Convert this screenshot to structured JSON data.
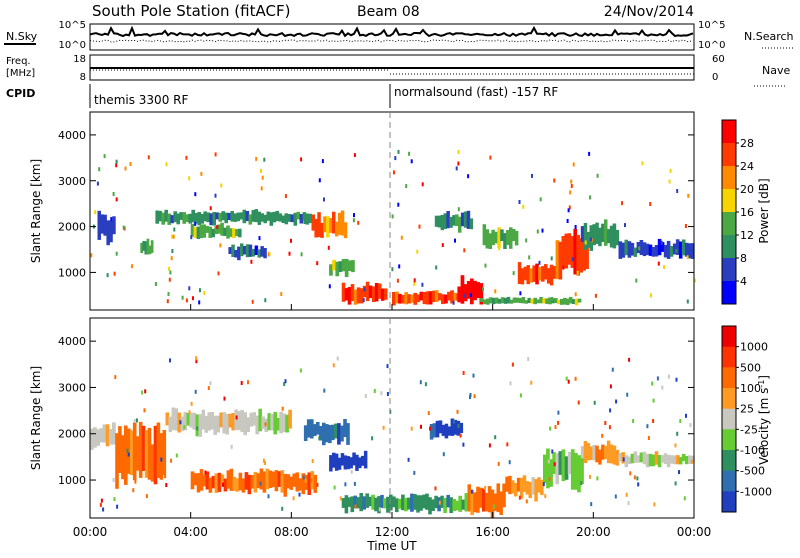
{
  "header": {
    "station_title": "South Pole Station (fitACF)",
    "beam": "Beam 08",
    "date": "24/Nov/2014"
  },
  "monitor_panels": {
    "nsky_label": "N.Sky",
    "nsky_ticks": [
      "10^5",
      "10^0"
    ],
    "nsearch_label": "N.Search",
    "nsearch_ticks": [
      "10^5",
      "10^0"
    ],
    "freq_label_line1": "Freq.",
    "freq_label_line2": "[MHz]",
    "freq_ticks": [
      "18",
      "8"
    ],
    "nave_label": "Nave",
    "nave_ticks": [
      "60",
      "0"
    ],
    "cpid_label": "CPID",
    "cpid_before": "themis 3300 RF",
    "cpid_after": "normalsound (fast) -157 RF"
  },
  "chart_data": [
    {
      "type": "heatmap",
      "panel": "power",
      "ylabel": "Slant Range [km]",
      "yticks": [
        "1000",
        "2000",
        "3000",
        "4000"
      ],
      "ylim": [
        180,
        4500
      ],
      "xlim_hours": [
        0,
        24
      ],
      "colorbar_label": "Power [dB]",
      "colorbar_ticks": [
        "4",
        "8",
        "12",
        "16",
        "20",
        "24",
        "28"
      ],
      "colorbar_colors": [
        "#0000ff",
        "#2a3fbf",
        "#2f8f5f",
        "#4ca845",
        "#f5d400",
        "#ff8a00",
        "#ff3b00",
        "#ff0000"
      ],
      "bands": [
        {
          "t0": 0.3,
          "t1": 1.0,
          "r0": 1600,
          "r1": 2300,
          "level": 1
        },
        {
          "t0": 2.0,
          "t1": 2.5,
          "r0": 1350,
          "r1": 1700,
          "level": 3
        },
        {
          "t0": 2.6,
          "t1": 8.8,
          "r0": 2050,
          "r1": 2350,
          "level": 2
        },
        {
          "t0": 4.0,
          "t1": 6.0,
          "r0": 1750,
          "r1": 2050,
          "level": 3
        },
        {
          "t0": 8.8,
          "t1": 10.2,
          "r0": 1700,
          "r1": 2300,
          "level": 5
        },
        {
          "t0": 5.5,
          "t1": 7.0,
          "r0": 1300,
          "r1": 1600,
          "level": 1
        },
        {
          "t0": 9.5,
          "t1": 10.5,
          "r0": 900,
          "r1": 1300,
          "level": 3
        },
        {
          "t0": 10.0,
          "t1": 11.8,
          "r0": 300,
          "r1": 750,
          "level": 6
        },
        {
          "t0": 12.0,
          "t1": 14.8,
          "r0": 300,
          "r1": 600,
          "level": 6
        },
        {
          "t0": 13.7,
          "t1": 15.2,
          "r0": 1900,
          "r1": 2300,
          "level": 2
        },
        {
          "t0": 14.6,
          "t1": 15.6,
          "r0": 250,
          "r1": 900,
          "level": 7
        },
        {
          "t0": 15.6,
          "t1": 17.0,
          "r0": 1500,
          "r1": 2000,
          "level": 3
        },
        {
          "t0": 17.0,
          "t1": 18.5,
          "r0": 700,
          "r1": 1200,
          "level": 6
        },
        {
          "t0": 18.5,
          "t1": 19.8,
          "r0": 900,
          "r1": 1900,
          "level": 6
        },
        {
          "t0": 19.5,
          "t1": 21.0,
          "r0": 1500,
          "r1": 2100,
          "level": 2
        },
        {
          "t0": 21.0,
          "t1": 24.0,
          "r0": 1300,
          "r1": 1700,
          "level": 1
        },
        {
          "t0": 15.5,
          "t1": 19.5,
          "r0": 300,
          "r1": 450,
          "level": 3
        }
      ]
    },
    {
      "type": "heatmap",
      "panel": "velocity",
      "ylabel": "Slant Range [km]",
      "yticks": [
        "1000",
        "2000",
        "3000",
        "4000"
      ],
      "ylim": [
        180,
        4500
      ],
      "xlim_hours": [
        0,
        24
      ],
      "xticks": [
        "00:00",
        "04:00",
        "08:00",
        "12:00",
        "16:00",
        "20:00",
        "00:00"
      ],
      "xlabel": "Time UT",
      "colorbar_label": "Velocity [m s^-1]",
      "colorbar_ticks": [
        "1000",
        "500",
        "100",
        "25",
        "-25",
        "-100",
        "-500",
        "-1000"
      ],
      "colorbar_colors": [
        "#1f3fbf",
        "#2f6fb0",
        "#2f8f5f",
        "#66cc33",
        "#c8c8c0",
        "#ff9a22",
        "#ff6a00",
        "#ff3300",
        "#ee0000"
      ],
      "bands": [
        {
          "t0": 0.0,
          "t1": 1.0,
          "r0": 1700,
          "r1": 2200,
          "level": 4
        },
        {
          "t0": 1.0,
          "t1": 3.0,
          "r0": 900,
          "r1": 2200,
          "level": 6
        },
        {
          "t0": 3.0,
          "t1": 8.0,
          "r0": 2000,
          "r1": 2500,
          "level": 4
        },
        {
          "t0": 4.0,
          "t1": 9.0,
          "r0": 700,
          "r1": 1200,
          "level": 6
        },
        {
          "t0": 8.5,
          "t1": 10.3,
          "r0": 1800,
          "r1": 2300,
          "level": 1
        },
        {
          "t0": 9.5,
          "t1": 11.0,
          "r0": 1200,
          "r1": 1600,
          "level": 0
        },
        {
          "t0": 10.0,
          "t1": 12.0,
          "r0": 300,
          "r1": 700,
          "level": 2
        },
        {
          "t0": 12.0,
          "t1": 15.0,
          "r0": 300,
          "r1": 700,
          "level": 2
        },
        {
          "t0": 13.5,
          "t1": 14.8,
          "r0": 1900,
          "r1": 2300,
          "level": 0
        },
        {
          "t0": 15.0,
          "t1": 16.5,
          "r0": 250,
          "r1": 900,
          "level": 6
        },
        {
          "t0": 16.5,
          "t1": 18.0,
          "r0": 600,
          "r1": 1100,
          "level": 5
        },
        {
          "t0": 18.0,
          "t1": 19.6,
          "r0": 800,
          "r1": 1700,
          "level": 3
        },
        {
          "t0": 19.5,
          "t1": 21.0,
          "r0": 1300,
          "r1": 1800,
          "level": 5
        },
        {
          "t0": 21.0,
          "t1": 24.0,
          "r0": 1300,
          "r1": 1600,
          "level": 4
        }
      ]
    }
  ]
}
